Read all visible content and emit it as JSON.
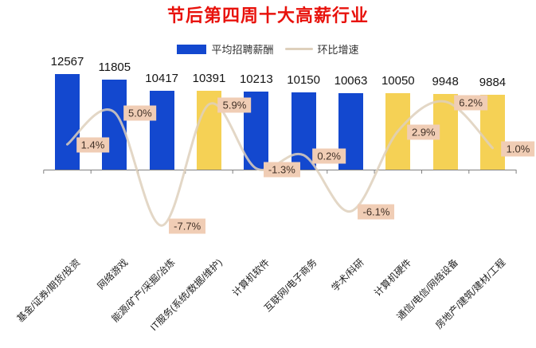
{
  "title": {
    "text": "节后第四周十大高薪行业"
  },
  "legend": {
    "bar_label": "平均招聘薪酬",
    "line_label": "环比增速"
  },
  "colors": {
    "title": "#e8120c",
    "bar_blue": "#1348cf",
    "bar_yellow": "#f5d155",
    "trend_line": "#ded0bc",
    "label_bg": "#f0cdb5",
    "label_text": "#403026",
    "axis": "#808080",
    "value_text": "#141414"
  },
  "chart_data": {
    "type": "bar",
    "combo": "bar+line",
    "title": "节后第四周十大高薪行业",
    "xlabel": "",
    "ylabel": "",
    "grid": false,
    "legend_position": "top",
    "value_labels_shown": true,
    "categories": [
      "基金/证券/期货/投资",
      "网络游戏",
      "能源/矿产/采掘/冶炼",
      "IT服务(系统/数据/维护)",
      "计算机软件",
      "互联网/电子商务",
      "学术/科研",
      "计算机硬件",
      "通信/电信/网络设备",
      "房地产/建筑/建材/工程"
    ],
    "series": [
      {
        "name": "平均招聘薪酬",
        "type": "bar",
        "values": [
          12567,
          11805,
          10417,
          10391,
          10213,
          10150,
          10063,
          10050,
          9948,
          9884
        ],
        "bar_colors": [
          "blue",
          "blue",
          "blue",
          "yellow",
          "blue",
          "blue",
          "blue",
          "yellow",
          "yellow",
          "yellow"
        ]
      },
      {
        "name": "环比增速",
        "type": "line",
        "unit": "%",
        "values": [
          1.4,
          5.0,
          -7.7,
          5.9,
          -1.3,
          0.2,
          -6.1,
          2.9,
          6.2,
          1.0
        ]
      }
    ]
  }
}
